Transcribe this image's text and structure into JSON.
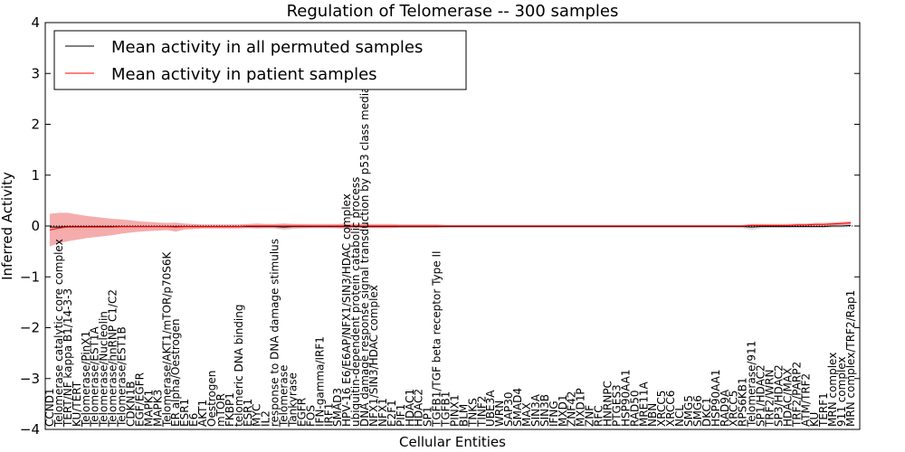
{
  "chart_data": {
    "type": "line",
    "title": "Regulation of Telomerase -- 300 samples",
    "xlabel": "Cellular Entities",
    "ylabel": "Inferred Activity",
    "ylim": [
      -4,
      4
    ],
    "yticks": [
      -4,
      -3,
      -2,
      -1,
      0,
      1,
      2,
      3,
      4
    ],
    "ytick_labels": [
      "−4",
      "−3",
      "−2",
      "−1",
      "0",
      "1",
      "2",
      "3",
      "4"
    ],
    "legend": {
      "placement": "top-left",
      "entries": [
        {
          "label": "Mean activity in all permuted samples",
          "color": "#000000"
        },
        {
          "label": "Mean activity in patient samples",
          "color": "#ff0000"
        }
      ]
    },
    "categories": [
      "CCND1",
      "Telomerase catalytic core complex",
      "TERT/NF kappa B1/14-3-3",
      "KU/TERT",
      "Telomerase/PinX1",
      "Telomerase/EST1A",
      "Telomerase/Nucleolin",
      "Telomerase/hnRNP C1/C2",
      "Telomerase/EST1B",
      "CDKN1B",
      "EGF/EGFR",
      "MAPK1",
      "MAPK3",
      "Telomerase/AKT1/mTOR/p70S6K",
      "ER alpha/Oestrogen",
      "ESR1",
      "E6",
      "AKT1",
      "Oestrogen",
      "mTOR",
      "FKBP1",
      "telomeric DNA binding",
      "ESR1",
      "MYC",
      "IL2",
      "response to DNA damage stimulus",
      "Telomerase",
      "Tankyrase",
      "EGFR",
      "FOS",
      "IFN-gamma/IRF1",
      "IRF1",
      "SMAD3",
      "HPV-16 E6/E6AP/NFX1/SIN3/HDAC complex",
      "ubiquitin-dependent protein catabolic process",
      "DNA damage response signal transduction by p53 class mediator",
      "NFX1/SIN3/HDAC complex",
      "NFX1",
      "E2F1",
      "PIF1",
      "HDAC1",
      "HDAC2",
      "SP1",
      "TGFB1/TGF beta receptor Type II",
      "TGFB1",
      "PINX1",
      "BLM",
      "TNKS",
      "TINF2",
      "UBE3A",
      "WRN",
      "SAP30",
      "SMAD4",
      "MAX",
      "SIN3A",
      "SIN3B",
      "IFNG",
      "MXD1",
      "ZNF42",
      "MXD1P",
      "ZNF",
      "RFC",
      "HNRNPC",
      "PTGES3",
      "HSP90AA1",
      "RAD50",
      "MRE11A",
      "NBN",
      "XRCC5",
      "XRCC6",
      "NCL",
      "SMG5",
      "SMG6",
      "DKC1",
      "HSP90AA1",
      "RAD9A",
      "XRCC5",
      "RPS6KB1",
      "Telomerase/911",
      "SP1/HDAC2",
      "TRF2/WRN",
      "SP3/HDAC2",
      "HDAC/MAX",
      "TRF2/PARP2",
      "ATM/TRF2",
      "KU",
      "TERF1",
      "MRN complex",
      "911 complex",
      "MRN complex/TRF2/Rap1"
    ],
    "permuted_mean": [
      -0.02,
      -0.02,
      -0.01,
      -0.01,
      -0.01,
      -0.01,
      -0.01,
      -0.01,
      -0.01,
      -0.01,
      -0.01,
      -0.01,
      -0.01,
      -0.01,
      -0.01,
      -0.01,
      -0.01,
      -0.01,
      -0.01,
      -0.01,
      -0.01,
      -0.01,
      -0.01,
      -0.01,
      -0.01,
      -0.01,
      -0.02,
      -0.01,
      -0.01,
      -0.01,
      -0.01,
      -0.01,
      -0.01,
      -0.01,
      -0.01,
      -0.01,
      -0.01,
      -0.01,
      -0.01,
      -0.01,
      -0.01,
      -0.01,
      -0.01,
      -0.01,
      -0.01,
      -0.01,
      -0.01,
      -0.01,
      -0.01,
      -0.01,
      -0.01,
      -0.01,
      -0.01,
      -0.01,
      -0.01,
      -0.01,
      -0.01,
      -0.01,
      -0.01,
      -0.01,
      -0.01,
      -0.01,
      -0.01,
      -0.01,
      -0.01,
      -0.01,
      -0.01,
      -0.01,
      -0.01,
      -0.01,
      -0.01,
      -0.01,
      -0.01,
      -0.01,
      -0.01,
      -0.01,
      -0.01,
      -0.01,
      -0.02,
      -0.01,
      -0.01,
      -0.01,
      -0.01,
      -0.01,
      -0.01,
      -0.01,
      -0.01,
      0.0,
      0.0,
      0.01
    ],
    "permuted_band": [
      0.03,
      0.03,
      0.03,
      0.03,
      0.03,
      0.03,
      0.03,
      0.03,
      0.03,
      0.03,
      0.03,
      0.03,
      0.03,
      0.03,
      0.03,
      0.03,
      0.03,
      0.03,
      0.03,
      0.03,
      0.03,
      0.03,
      0.03,
      0.03,
      0.04,
      0.04,
      0.06,
      0.05,
      0.04,
      0.03,
      0.03,
      0.03,
      0.04,
      0.04,
      0.03,
      0.03,
      0.03,
      0.03,
      0.03,
      0.03,
      0.03,
      0.03,
      0.03,
      0.03,
      0.03,
      0.03,
      0.03,
      0.03,
      0.03,
      0.03,
      0.03,
      0.03,
      0.03,
      0.03,
      0.03,
      0.03,
      0.03,
      0.03,
      0.03,
      0.03,
      0.03,
      0.03,
      0.03,
      0.03,
      0.03,
      0.03,
      0.03,
      0.03,
      0.03,
      0.03,
      0.03,
      0.03,
      0.03,
      0.03,
      0.03,
      0.03,
      0.03,
      0.03,
      0.06,
      0.04,
      0.03,
      0.03,
      0.03,
      0.03,
      0.03,
      0.03,
      0.03,
      0.03,
      0.03,
      0.03
    ],
    "patient_mean": [
      -0.08,
      -0.04,
      -0.02,
      -0.02,
      -0.02,
      -0.02,
      -0.02,
      -0.02,
      -0.01,
      -0.01,
      -0.01,
      -0.01,
      -0.01,
      -0.01,
      -0.02,
      -0.01,
      -0.01,
      -0.01,
      -0.01,
      -0.01,
      -0.01,
      -0.01,
      0.0,
      0.0,
      0.0,
      0.0,
      0.0,
      0.0,
      0.0,
      0.0,
      0.0,
      0.0,
      0.0,
      0.0,
      0.0,
      0.0,
      0.0,
      0.0,
      0.0,
      0.0,
      0.0,
      0.0,
      0.0,
      0.0,
      0.0,
      0.0,
      0.0,
      0.0,
      0.0,
      0.0,
      0.0,
      0.0,
      0.0,
      0.0,
      0.0,
      0.0,
      0.0,
      0.0,
      0.0,
      0.0,
      0.0,
      0.0,
      0.0,
      0.0,
      0.0,
      0.0,
      0.0,
      0.0,
      0.0,
      0.0,
      0.0,
      0.0,
      0.0,
      0.0,
      0.0,
      0.0,
      0.0,
      0.0,
      0.01,
      0.01,
      0.01,
      0.01,
      0.01,
      0.02,
      0.02,
      0.03,
      0.03,
      0.04,
      0.05,
      0.06
    ],
    "patient_band": [
      0.32,
      0.3,
      0.28,
      0.25,
      0.22,
      0.2,
      0.18,
      0.16,
      0.14,
      0.12,
      0.1,
      0.09,
      0.08,
      0.07,
      0.09,
      0.06,
      0.05,
      0.04,
      0.04,
      0.04,
      0.04,
      0.04,
      0.04,
      0.05,
      0.04,
      0.04,
      0.05,
      0.04,
      0.04,
      0.04,
      0.04,
      0.04,
      0.04,
      0.05,
      0.04,
      0.04,
      0.04,
      0.04,
      0.04,
      0.03,
      0.03,
      0.03,
      0.03,
      0.03,
      0.02,
      0.02,
      0.02,
      0.02,
      0.02,
      0.02,
      0.02,
      0.02,
      0.02,
      0.02,
      0.02,
      0.02,
      0.02,
      0.02,
      0.02,
      0.02,
      0.02,
      0.02,
      0.02,
      0.02,
      0.02,
      0.02,
      0.02,
      0.02,
      0.02,
      0.02,
      0.02,
      0.02,
      0.02,
      0.02,
      0.02,
      0.02,
      0.02,
      0.02,
      0.03,
      0.03,
      0.03,
      0.03,
      0.03,
      0.03,
      0.03,
      0.03,
      0.03,
      0.03,
      0.03,
      0.03
    ],
    "colors": {
      "permuted_line": "#000000",
      "permuted_band": "#c8c8c8",
      "patient_line": "#ff0000",
      "patient_band": "#f08080",
      "zero_line": "#000000"
    }
  }
}
